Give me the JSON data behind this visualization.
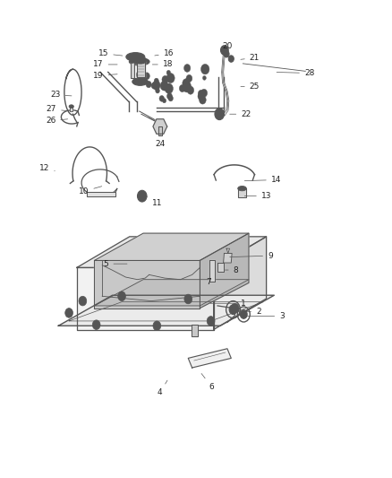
{
  "background_color": "#ffffff",
  "fig_width": 4.38,
  "fig_height": 5.33,
  "dpi": 100,
  "line_color": "#555555",
  "label_fontsize": 6.5,
  "label_color": "#222222",
  "parts_labels": {
    "1": [
      0.53,
      0.365,
      0.62,
      0.365
    ],
    "2": [
      0.595,
      0.348,
      0.66,
      0.348
    ],
    "3": [
      0.62,
      0.338,
      0.72,
      0.338
    ],
    "4": [
      0.43,
      0.208,
      0.408,
      0.178
    ],
    "5": [
      0.33,
      0.448,
      0.27,
      0.448
    ],
    "6": [
      0.51,
      0.222,
      0.54,
      0.19
    ],
    "7": [
      0.53,
      0.415,
      0.533,
      0.41
    ],
    "8": [
      0.568,
      0.435,
      0.602,
      0.435
    ],
    "9": [
      0.58,
      0.462,
      0.69,
      0.465
    ],
    "10": [
      0.265,
      0.612,
      0.213,
      0.6
    ],
    "11": [
      0.365,
      0.594,
      0.4,
      0.575
    ],
    "12": [
      0.145,
      0.642,
      0.112,
      0.648
    ],
    "13": [
      0.618,
      0.59,
      0.68,
      0.59
    ],
    "14": [
      0.618,
      0.622,
      0.705,
      0.624
    ],
    "15": [
      0.318,
      0.884,
      0.263,
      0.889
    ],
    "16": [
      0.388,
      0.884,
      0.43,
      0.889
    ],
    "17": [
      0.305,
      0.866,
      0.25,
      0.866
    ],
    "18": [
      0.382,
      0.866,
      0.428,
      0.866
    ],
    "19": [
      0.305,
      0.846,
      0.25,
      0.843
    ],
    "20": [
      0.578,
      0.886,
      0.58,
      0.905
    ],
    "21": [
      0.608,
      0.876,
      0.65,
      0.88
    ],
    "22": [
      0.58,
      0.762,
      0.628,
      0.762
    ],
    "23": [
      0.188,
      0.8,
      0.14,
      0.802
    ],
    "24": [
      0.41,
      0.726,
      0.408,
      0.7
    ],
    "25": [
      0.608,
      0.82,
      0.65,
      0.82
    ],
    "26": [
      0.178,
      0.752,
      0.128,
      0.748
    ],
    "27": [
      0.182,
      0.768,
      0.13,
      0.772
    ],
    "28": [
      0.7,
      0.85,
      0.79,
      0.848
    ]
  }
}
